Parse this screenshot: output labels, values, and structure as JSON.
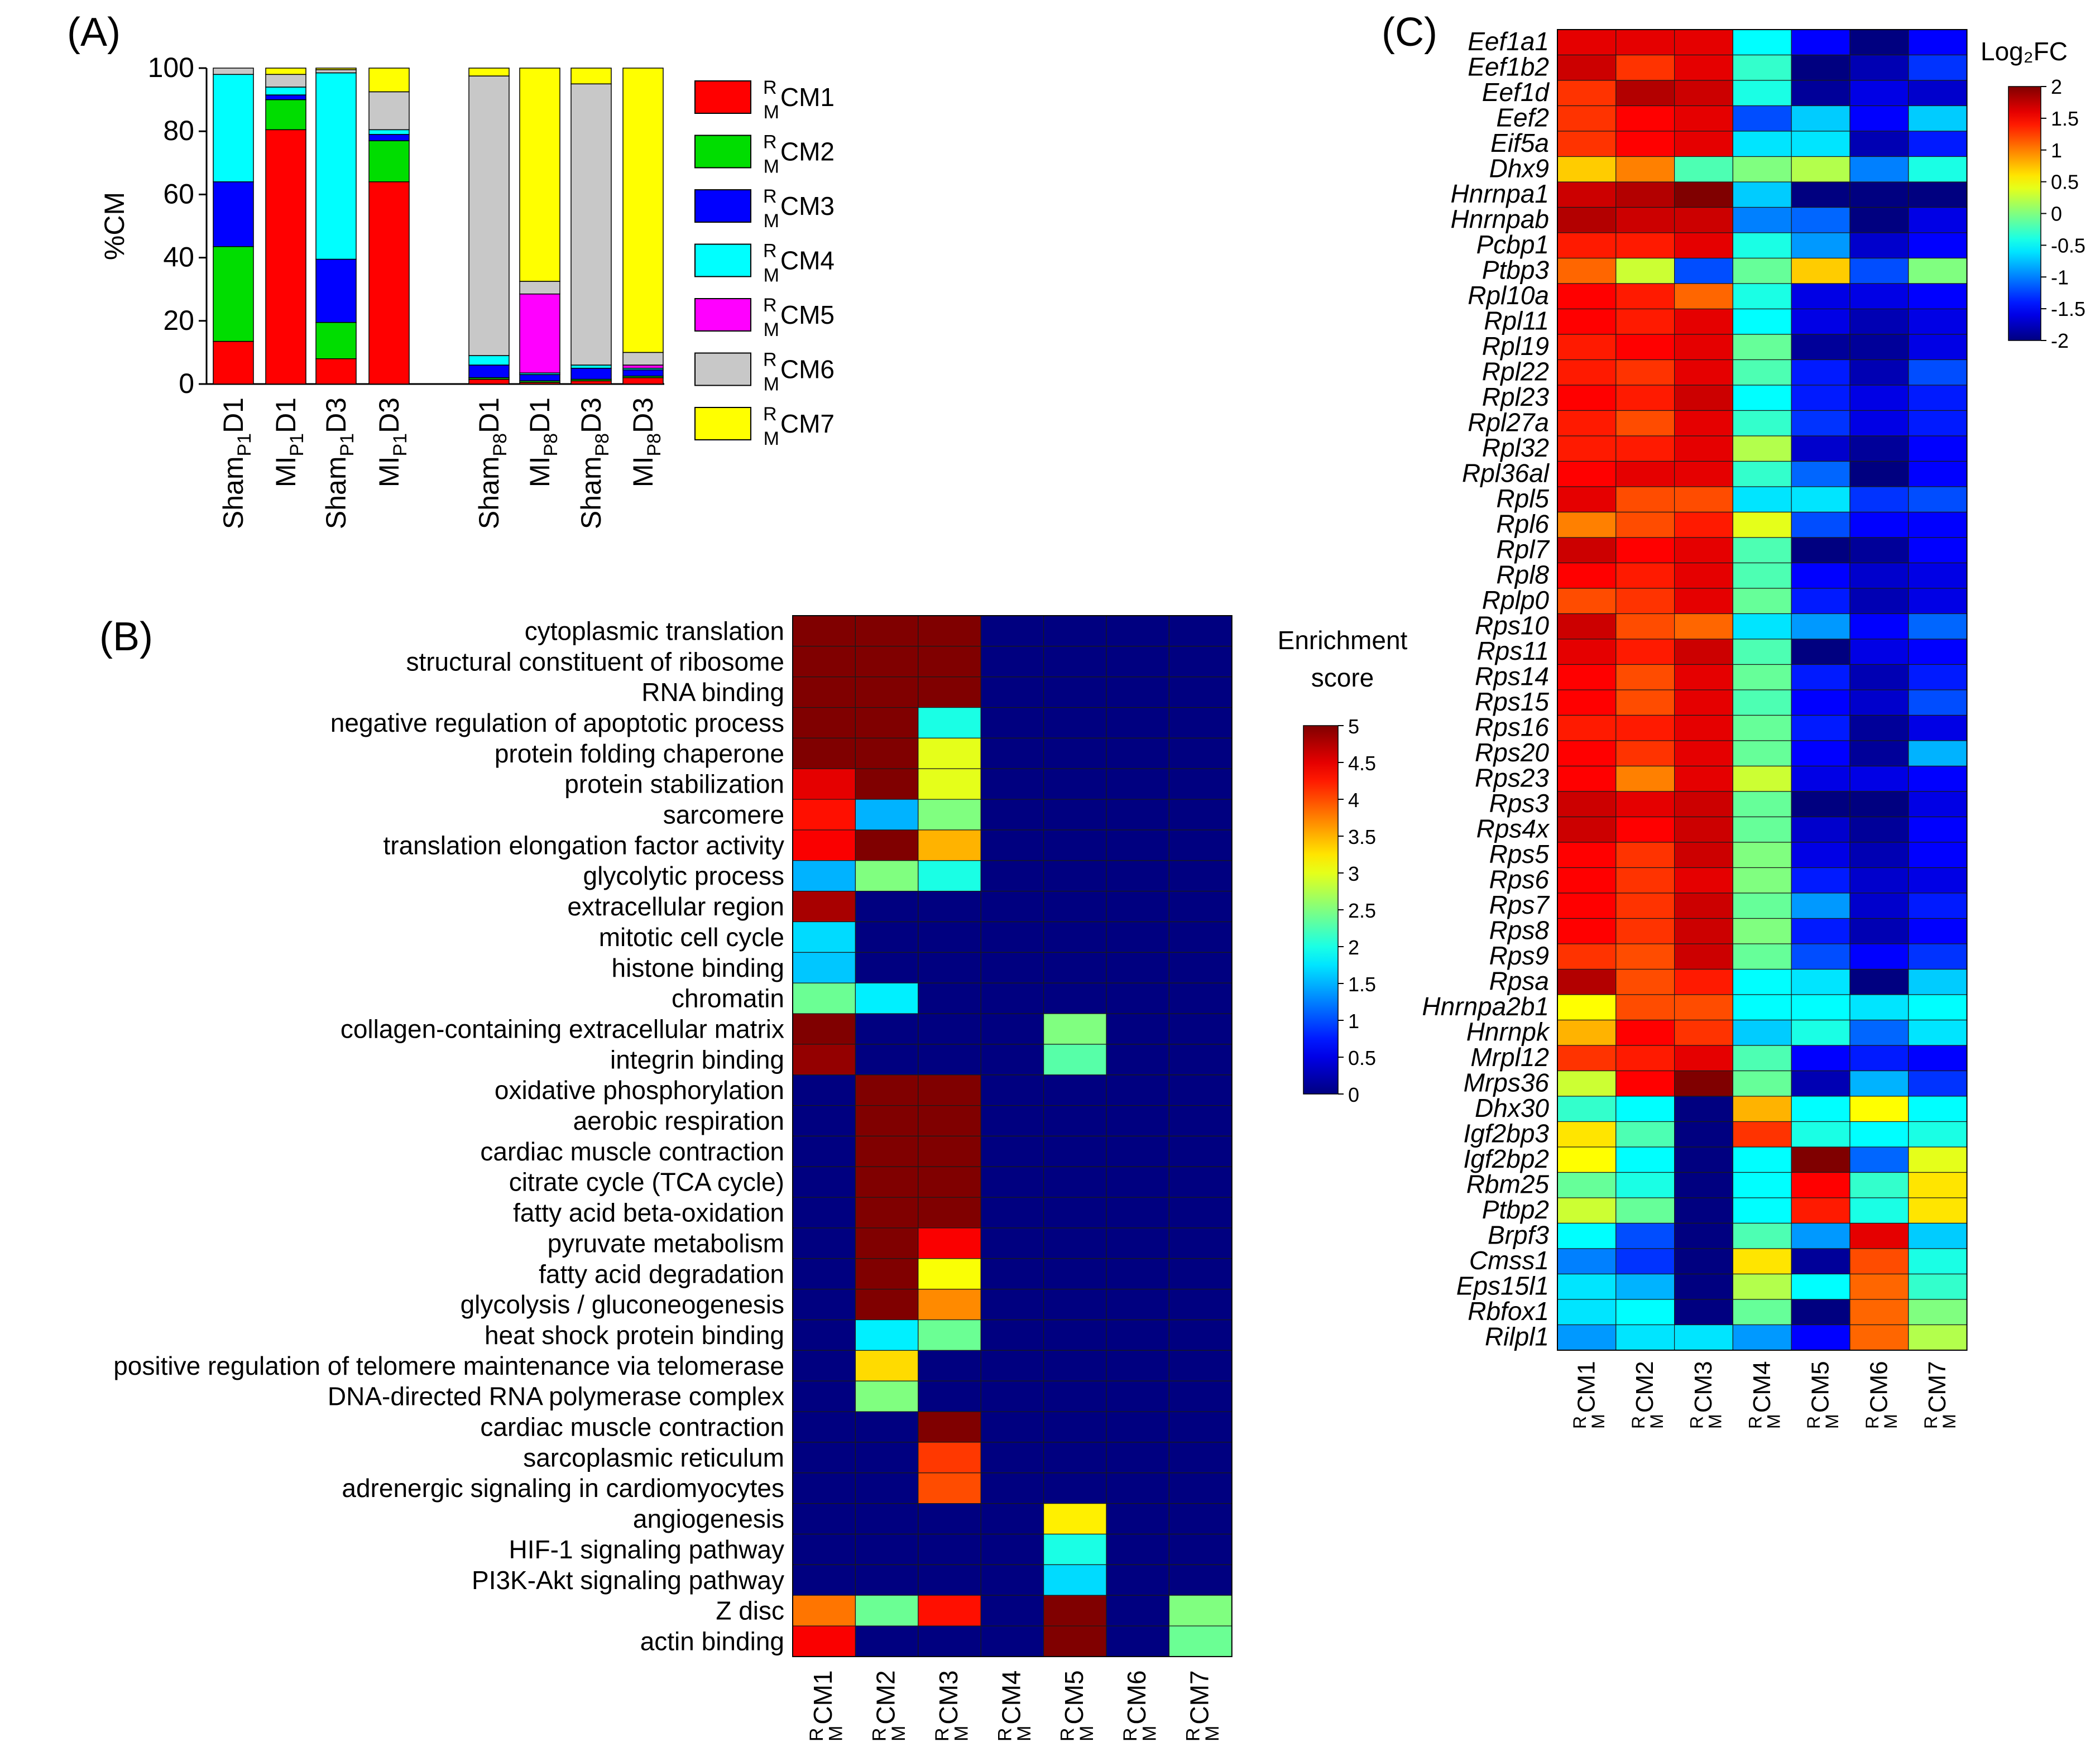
{
  "panels": {
    "a": "(A)",
    "b": "(B)",
    "c": "(C)"
  },
  "chart_data": [
    {
      "type": "bar",
      "stacked": true,
      "panel": "(A)",
      "ylabel": "%CM",
      "ylim": [
        0,
        100
      ],
      "yticks": [
        0,
        20,
        40,
        60,
        80,
        100
      ],
      "categories": [
        {
          "pre": "Sham",
          "sub": "P1",
          "post": "D1"
        },
        {
          "pre": "MI",
          "sub": "P1",
          "post": "D1"
        },
        {
          "pre": "Sham",
          "sub": "P1",
          "post": "D3"
        },
        {
          "pre": "MI",
          "sub": "P1",
          "post": "D3"
        },
        {
          "pre": "Sham",
          "sub": "P8",
          "post": "D1"
        },
        {
          "pre": "MI",
          "sub": "P8",
          "post": "D1"
        },
        {
          "pre": "Sham",
          "sub": "P8",
          "post": "D3"
        },
        {
          "pre": "MI",
          "sub": "P8",
          "post": "D3"
        }
      ],
      "series": [
        {
          "name": "CM1",
          "color": "#ff0000",
          "values": [
            13.5,
            80.5,
            8.0,
            64.0,
            1.5,
            0.5,
            1.0,
            2.0
          ]
        },
        {
          "name": "CM2",
          "color": "#00dd00",
          "values": [
            30.0,
            9.5,
            11.5,
            13.0,
            0.5,
            0.5,
            0.5,
            0.5
          ]
        },
        {
          "name": "CM3",
          "color": "#0000ff",
          "values": [
            20.5,
            1.5,
            20.0,
            2.0,
            4.0,
            2.0,
            3.5,
            2.0
          ]
        },
        {
          "name": "CM4",
          "color": "#00ffff",
          "values": [
            34.0,
            2.5,
            59.0,
            1.5,
            3.0,
            0.5,
            1.0,
            0.5
          ]
        },
        {
          "name": "CM5",
          "color": "#ff00ff",
          "values": [
            0,
            0,
            0,
            0,
            0,
            25.0,
            0,
            1.0
          ]
        },
        {
          "name": "CM6",
          "color": "#c8c8c8",
          "values": [
            2.0,
            4.0,
            1.0,
            12.0,
            88.5,
            4.0,
            89.0,
            4.0
          ]
        },
        {
          "name": "CM7",
          "color": "#ffff00",
          "values": [
            0,
            2.0,
            0.5,
            7.5,
            2.5,
            67.5,
            5.0,
            90.0
          ]
        }
      ],
      "legend_prefix_sup": "R",
      "legend_prefix_sub": "M"
    },
    {
      "type": "heatmap",
      "panel": "(B)",
      "colorbar_title": [
        "Enrichment",
        "score"
      ],
      "colorbar_range": [
        0,
        5
      ],
      "colorbar_ticks": [
        "0",
        "0.5",
        "1",
        "1.5",
        "2",
        "2.5",
        "3",
        "3.5",
        "4",
        "4.5",
        "5"
      ],
      "columns": [
        "CM1",
        "CM2",
        "CM3",
        "CM4",
        "CM5",
        "CM6",
        "CM7"
      ],
      "col_sup": "R",
      "col_sub": "M",
      "rows": [
        "cytoplasmic translation",
        "structural constituent of ribosome",
        "RNA binding",
        "negative regulation of apoptotic process",
        "protein folding chaperone",
        "protein stabilization",
        "sarcomere",
        "translation elongation factor activity",
        "glycolytic process",
        "extracellular region",
        "mitotic cell cycle",
        "histone binding",
        "chromatin",
        "collagen-containing extracellular matrix",
        "integrin binding",
        "oxidative phosphorylation",
        "aerobic respiration",
        "cardiac muscle contraction",
        "citrate cycle (TCA cycle)",
        "fatty acid beta-oxidation",
        "pyruvate metabolism",
        "fatty acid degradation",
        "glycolysis / gluconeogenesis",
        "heat shock protein binding",
        "positive regulation of telomere maintenance via telomerase",
        "DNA-directed RNA polymerase complex",
        "cardiac muscle contraction",
        "sarcoplasmic reticulum",
        "adrenergic signaling in cardiomyocytes",
        "angiogenesis",
        "HIF-1 signaling pathway",
        "PI3K-Akt signaling pathway",
        "Z disc",
        "actin binding"
      ],
      "values": [
        [
          5,
          5,
          5,
          0,
          0,
          0,
          0
        ],
        [
          5,
          5,
          5,
          0,
          0,
          0,
          0
        ],
        [
          5,
          5,
          5,
          0,
          0,
          0,
          0
        ],
        [
          5,
          5,
          2.0,
          0,
          0,
          0,
          0
        ],
        [
          5,
          5,
          3.0,
          0,
          0,
          0,
          0
        ],
        [
          4.5,
          5,
          3.0,
          0,
          0,
          0,
          0
        ],
        [
          4.3,
          1.5,
          2.5,
          0,
          0,
          0,
          0
        ],
        [
          4.4,
          5,
          3.5,
          0,
          0,
          0,
          0
        ],
        [
          1.5,
          2.5,
          2.0,
          0,
          0,
          0,
          0
        ],
        [
          4.8,
          0,
          0,
          0,
          0,
          0,
          0
        ],
        [
          1.7,
          0,
          0,
          0,
          0,
          0,
          0
        ],
        [
          1.6,
          0,
          0,
          0,
          0,
          0,
          0
        ],
        [
          2.4,
          1.8,
          0,
          0,
          0,
          0,
          0
        ],
        [
          5,
          0,
          0,
          0,
          2.5,
          0,
          0
        ],
        [
          4.9,
          0,
          0,
          0,
          2.3,
          0,
          0
        ],
        [
          0,
          5,
          5,
          0,
          0,
          0,
          0
        ],
        [
          0,
          5,
          5,
          0,
          0,
          0,
          0
        ],
        [
          0,
          5,
          5,
          0,
          0,
          0,
          0
        ],
        [
          0,
          5,
          5,
          0,
          0,
          0,
          0
        ],
        [
          0,
          5,
          5,
          0,
          0,
          0,
          0
        ],
        [
          0,
          5,
          4.4,
          0,
          0,
          0,
          0
        ],
        [
          0,
          5,
          3.1,
          0,
          0,
          0,
          0
        ],
        [
          0,
          5,
          3.7,
          0,
          0,
          0,
          0
        ],
        [
          0,
          1.8,
          2.4,
          0,
          0,
          0,
          0
        ],
        [
          0,
          3.3,
          0,
          0,
          0,
          0,
          0
        ],
        [
          0,
          2.5,
          0,
          0,
          0,
          0,
          0
        ],
        [
          0,
          0,
          5,
          0,
          0,
          0,
          0
        ],
        [
          0,
          0,
          4.1,
          0,
          0,
          0,
          0
        ],
        [
          0,
          0,
          4.0,
          0,
          0,
          0,
          0
        ],
        [
          0,
          0,
          0,
          0,
          3.2,
          0,
          0
        ],
        [
          0,
          0,
          0,
          0,
          2.0,
          0,
          0
        ],
        [
          0,
          0,
          0,
          0,
          1.7,
          0,
          0
        ],
        [
          3.8,
          2.4,
          4.3,
          0,
          5,
          0,
          2.5
        ],
        [
          4.4,
          0,
          0,
          0,
          5,
          0,
          2.4
        ]
      ]
    },
    {
      "type": "heatmap",
      "panel": "(C)",
      "colorbar_title": "Log₂FC",
      "colorbar_range": [
        -2,
        2
      ],
      "colorbar_ticks": [
        "2",
        "1.5",
        "1",
        "0.5",
        "0",
        "-0.5",
        "-1",
        "-1.5",
        "-2"
      ],
      "columns": [
        "CM1",
        "CM2",
        "CM3",
        "CM4",
        "CM5",
        "CM6",
        "CM7"
      ],
      "col_sup": "R",
      "col_sub": "M",
      "rows": [
        "Eef1a1",
        "Eef1b2",
        "Eef1d",
        "Eef2",
        "Eif5a",
        "Dhx9",
        "Hnrnpa1",
        "Hnrnpab",
        "Pcbp1",
        "Ptbp3",
        "Rpl10a",
        "Rpl11",
        "Rpl19",
        "Rpl22",
        "Rpl23",
        "Rpl27a",
        "Rpl32",
        "Rpl36al",
        "Rpl5",
        "Rpl6",
        "Rpl7",
        "Rpl8",
        "Rplp0",
        "Rps10",
        "Rps11",
        "Rps14",
        "Rps15",
        "Rps16",
        "Rps20",
        "Rps23",
        "Rps3",
        "Rps4x",
        "Rps5",
        "Rps6",
        "Rps7",
        "Rps8",
        "Rps9",
        "Rpsa",
        "Hnrnpa2b1",
        "Hnrnpk",
        "Mrpl12",
        "Mrps36",
        "Dhx30",
        "Igf2bp3",
        "Igf2bp2",
        "Rbm25",
        "Ptbp2",
        "Brpf3",
        "Cmss1",
        "Eps15l1",
        "Rbfox1",
        "Rilpl1"
      ],
      "values": [
        [
          1.6,
          1.6,
          1.6,
          -0.5,
          -1.5,
          -2.0,
          -1.5
        ],
        [
          1.7,
          1.3,
          1.6,
          -0.3,
          -2.0,
          -1.8,
          -1.3
        ],
        [
          1.3,
          1.8,
          1.7,
          -0.4,
          -1.9,
          -1.6,
          -1.7
        ],
        [
          1.3,
          1.5,
          1.6,
          -1.2,
          -0.7,
          -1.5,
          -0.7
        ],
        [
          1.3,
          1.5,
          1.6,
          -0.6,
          -0.6,
          -1.8,
          -1.4
        ],
        [
          0.7,
          1.0,
          -0.2,
          0.0,
          0.2,
          -1.0,
          -0.4
        ],
        [
          1.7,
          1.8,
          2.0,
          -0.7,
          -2.0,
          -2.0,
          -2.0
        ],
        [
          1.8,
          1.7,
          1.7,
          -1.0,
          -1.1,
          -2.0,
          -1.6
        ],
        [
          1.4,
          1.4,
          1.6,
          -0.4,
          -0.9,
          -1.7,
          -1.5
        ],
        [
          1.1,
          0.3,
          -1.2,
          -0.1,
          0.7,
          -1.2,
          0.0
        ],
        [
          1.5,
          1.4,
          1.1,
          -0.4,
          -1.6,
          -1.6,
          -1.5
        ],
        [
          1.5,
          1.4,
          1.6,
          -0.5,
          -1.6,
          -1.8,
          -1.6
        ],
        [
          1.4,
          1.5,
          1.6,
          -0.1,
          -1.9,
          -1.9,
          -1.6
        ],
        [
          1.4,
          1.3,
          1.6,
          -0.2,
          -1.4,
          -1.8,
          -1.2
        ],
        [
          1.5,
          1.4,
          1.7,
          -0.5,
          -1.4,
          -1.6,
          -1.4
        ],
        [
          1.4,
          1.2,
          1.6,
          -0.3,
          -1.3,
          -1.6,
          -1.4
        ],
        [
          1.4,
          1.4,
          1.6,
          0.2,
          -1.7,
          -1.9,
          -1.5
        ],
        [
          1.5,
          1.6,
          1.6,
          -0.3,
          -1.1,
          -2.0,
          -1.5
        ],
        [
          1.6,
          1.2,
          1.2,
          -0.6,
          -0.6,
          -1.3,
          -1.2
        ],
        [
          1.0,
          1.2,
          1.4,
          0.4,
          -1.2,
          -1.5,
          -1.5
        ],
        [
          1.7,
          1.5,
          1.6,
          -0.2,
          -2.0,
          -1.9,
          -1.5
        ],
        [
          1.5,
          1.4,
          1.6,
          -0.2,
          -1.5,
          -1.7,
          -1.6
        ],
        [
          1.2,
          1.3,
          1.6,
          -0.1,
          -1.4,
          -1.8,
          -1.6
        ],
        [
          1.7,
          1.2,
          1.1,
          -0.6,
          -0.9,
          -1.5,
          -1.1
        ],
        [
          1.6,
          1.4,
          1.7,
          -0.2,
          -2.0,
          -1.6,
          -1.5
        ],
        [
          1.5,
          1.2,
          1.6,
          -0.1,
          -1.4,
          -1.8,
          -1.4
        ],
        [
          1.5,
          1.2,
          1.6,
          -0.2,
          -1.5,
          -1.7,
          -1.2
        ],
        [
          1.4,
          1.4,
          1.6,
          -0.1,
          -1.4,
          -1.9,
          -1.6
        ],
        [
          1.5,
          1.3,
          1.6,
          -0.1,
          -1.5,
          -1.9,
          -0.8
        ],
        [
          1.5,
          1.0,
          1.6,
          0.3,
          -1.6,
          -1.6,
          -1.5
        ],
        [
          1.7,
          1.6,
          1.7,
          -0.1,
          -2.0,
          -2.0,
          -1.6
        ],
        [
          1.7,
          1.5,
          1.7,
          -0.1,
          -1.7,
          -1.9,
          -1.5
        ],
        [
          1.5,
          1.3,
          1.7,
          0.0,
          -1.6,
          -1.8,
          -1.5
        ],
        [
          1.5,
          1.3,
          1.6,
          0.0,
          -1.4,
          -1.7,
          -1.6
        ],
        [
          1.5,
          1.3,
          1.7,
          -0.1,
          -0.9,
          -1.7,
          -1.4
        ],
        [
          1.5,
          1.3,
          1.7,
          0.0,
          -1.4,
          -1.8,
          -1.5
        ],
        [
          1.3,
          1.2,
          1.7,
          -0.1,
          -1.2,
          -1.5,
          -1.3
        ],
        [
          1.8,
          1.2,
          1.4,
          -0.5,
          -0.6,
          -2.0,
          -0.7
        ],
        [
          0.5,
          1.2,
          1.2,
          -0.5,
          -0.5,
          -0.6,
          -0.5
        ],
        [
          0.8,
          1.5,
          1.3,
          -0.7,
          -0.4,
          -1.1,
          -0.6
        ],
        [
          1.3,
          1.4,
          1.6,
          -0.2,
          -1.5,
          -1.4,
          -1.5
        ],
        [
          0.3,
          1.5,
          2.0,
          -0.1,
          -1.8,
          -0.8,
          -1.3
        ],
        [
          -0.3,
          -0.5,
          -2.0,
          0.8,
          -0.5,
          0.5,
          -0.5
        ],
        [
          0.6,
          -0.2,
          -2.0,
          1.3,
          -0.4,
          -0.5,
          -0.4
        ],
        [
          0.5,
          -0.5,
          -2.0,
          -0.5,
          2.0,
          -1.1,
          0.4
        ],
        [
          -0.1,
          -0.4,
          -2.0,
          -0.5,
          1.5,
          -0.3,
          0.6
        ],
        [
          0.3,
          -0.1,
          -2.0,
          -0.5,
          1.4,
          -0.4,
          0.6
        ],
        [
          -0.5,
          -1.2,
          -2.0,
          -0.2,
          -0.9,
          1.6,
          -0.7
        ],
        [
          -1.0,
          -1.3,
          -2.0,
          0.6,
          -1.9,
          1.2,
          -0.4
        ],
        [
          -0.6,
          -0.8,
          -2.0,
          0.2,
          -0.5,
          1.1,
          -0.3
        ],
        [
          -0.6,
          -0.5,
          -2.0,
          -0.1,
          -2.0,
          1.1,
          0.0
        ],
        [
          -0.9,
          -0.6,
          -0.6,
          -0.9,
          -1.5,
          1.1,
          0.2
        ]
      ]
    }
  ]
}
